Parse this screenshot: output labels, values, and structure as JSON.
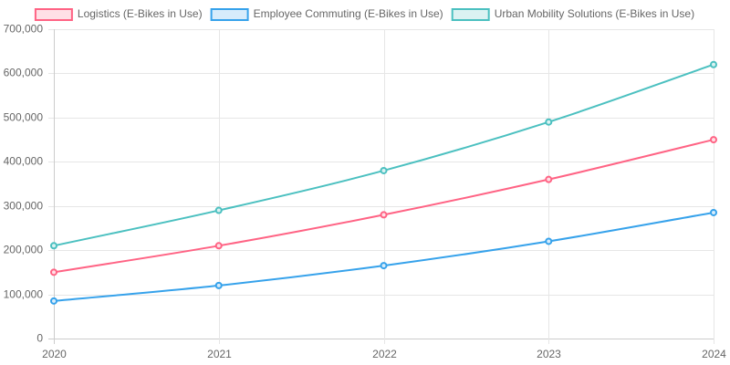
{
  "chart_data": {
    "type": "line",
    "title": "",
    "xlabel": "",
    "ylabel": "",
    "categories": [
      "2020",
      "2021",
      "2022",
      "2023",
      "2024"
    ],
    "ylim": [
      0,
      700000
    ],
    "yticks": [
      0,
      100000,
      200000,
      300000,
      400000,
      500000,
      600000,
      700000
    ],
    "ytick_labels": [
      "0",
      "100,000",
      "200,000",
      "300,000",
      "400,000",
      "500,000",
      "600,000",
      "700,000"
    ],
    "grid": true,
    "legend_position": "top-center",
    "series": [
      {
        "name": "Logistics (E-Bikes in Use)",
        "color": "#ff6384",
        "fill": "#ffe0e6",
        "values": [
          150000,
          210000,
          280000,
          360000,
          450000
        ]
      },
      {
        "name": "Employee Commuting (E-Bikes in Use)",
        "color": "#36a2eb",
        "fill": "#d7ecfb",
        "values": [
          85000,
          120000,
          165000,
          220000,
          285000
        ]
      },
      {
        "name": "Urban Mobility Solutions (E-Bikes in Use)",
        "color": "#4bc0c0",
        "fill": "#dbf2f2",
        "values": [
          210000,
          290000,
          380000,
          490000,
          620000
        ]
      }
    ]
  }
}
